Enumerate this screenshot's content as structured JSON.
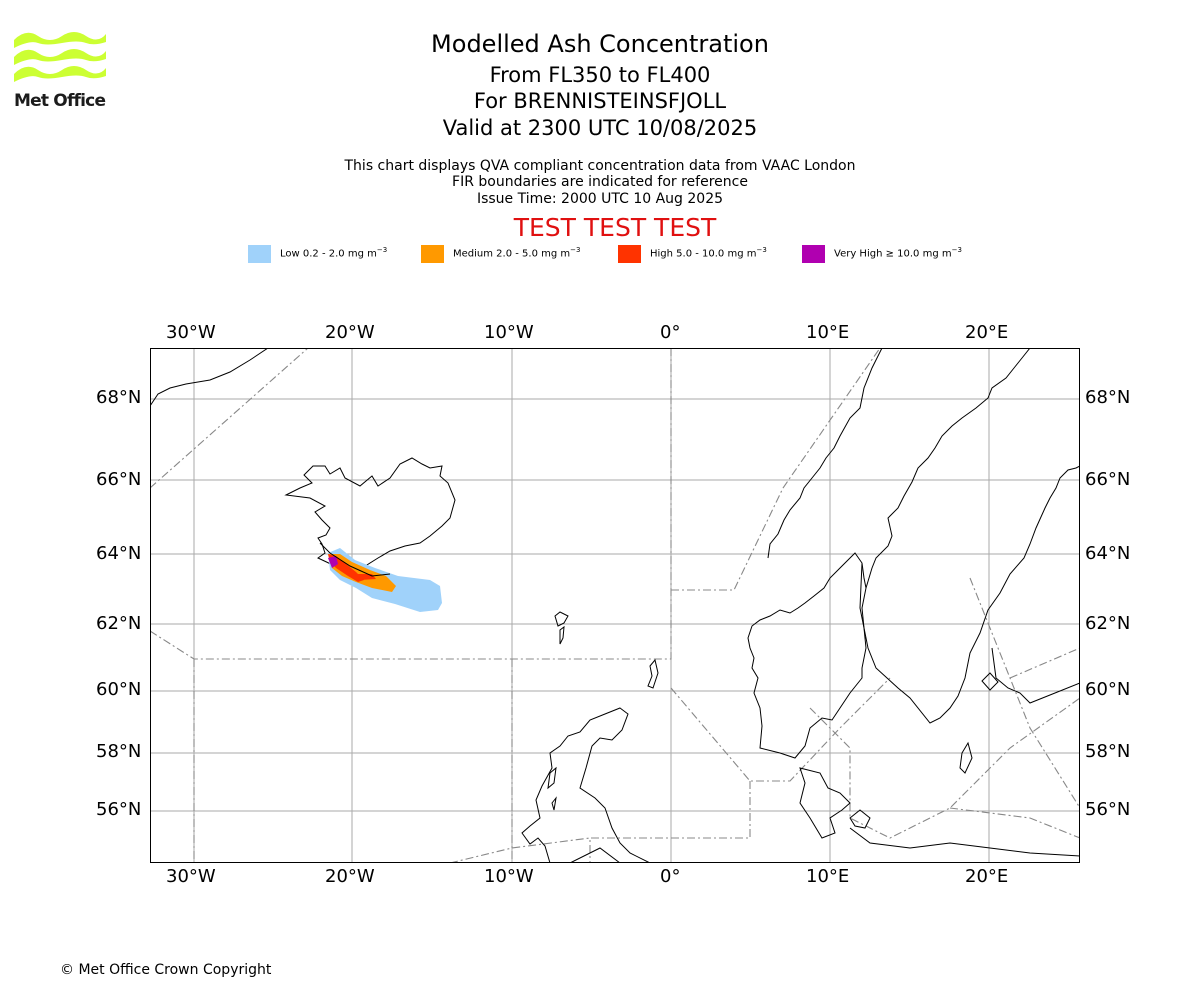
{
  "logo": {
    "text": "Met Office",
    "color": "#ccff33"
  },
  "title": "Modelled Ash Concentration",
  "subtitle_lines": [
    "From FL350 to FL400",
    "For BRENNISTEINSFJOLL",
    "Valid at 2300 UTC 10/08/2025"
  ],
  "notes": [
    "This chart displays QVA compliant concentration data from VAAC London",
    "FIR boundaries are indicated for reference",
    "Issue Time: 2000 UTC 10 Aug 2025"
  ],
  "test_banner": "TEST TEST TEST",
  "test_banner_color": "#e01010",
  "legend": [
    {
      "label": "Low 0.2 - 2.0 mg m",
      "color": "#a0d2fa"
    },
    {
      "label": "Medium 2.0 - 5.0 mg m",
      "color": "#ff9900"
    },
    {
      "label": "High 5.0 - 10.0 mg m",
      "color": "#ff3300"
    },
    {
      "label": "Very High  ≥  10.0 mg m",
      "color": "#b000b0"
    }
  ],
  "legend_unit_exponent": "−3",
  "map": {
    "lon_ticks": [
      "30°W",
      "20°W",
      "10°W",
      "0°",
      "10°E",
      "20°E"
    ],
    "lat_ticks": [
      "68°N",
      "66°N",
      "64°N",
      "62°N",
      "60°N",
      "58°N",
      "56°N"
    ],
    "grid_color": "#aaaaaa",
    "fir_color": "#888888"
  },
  "copyright": "© Met Office Crown Copyright"
}
